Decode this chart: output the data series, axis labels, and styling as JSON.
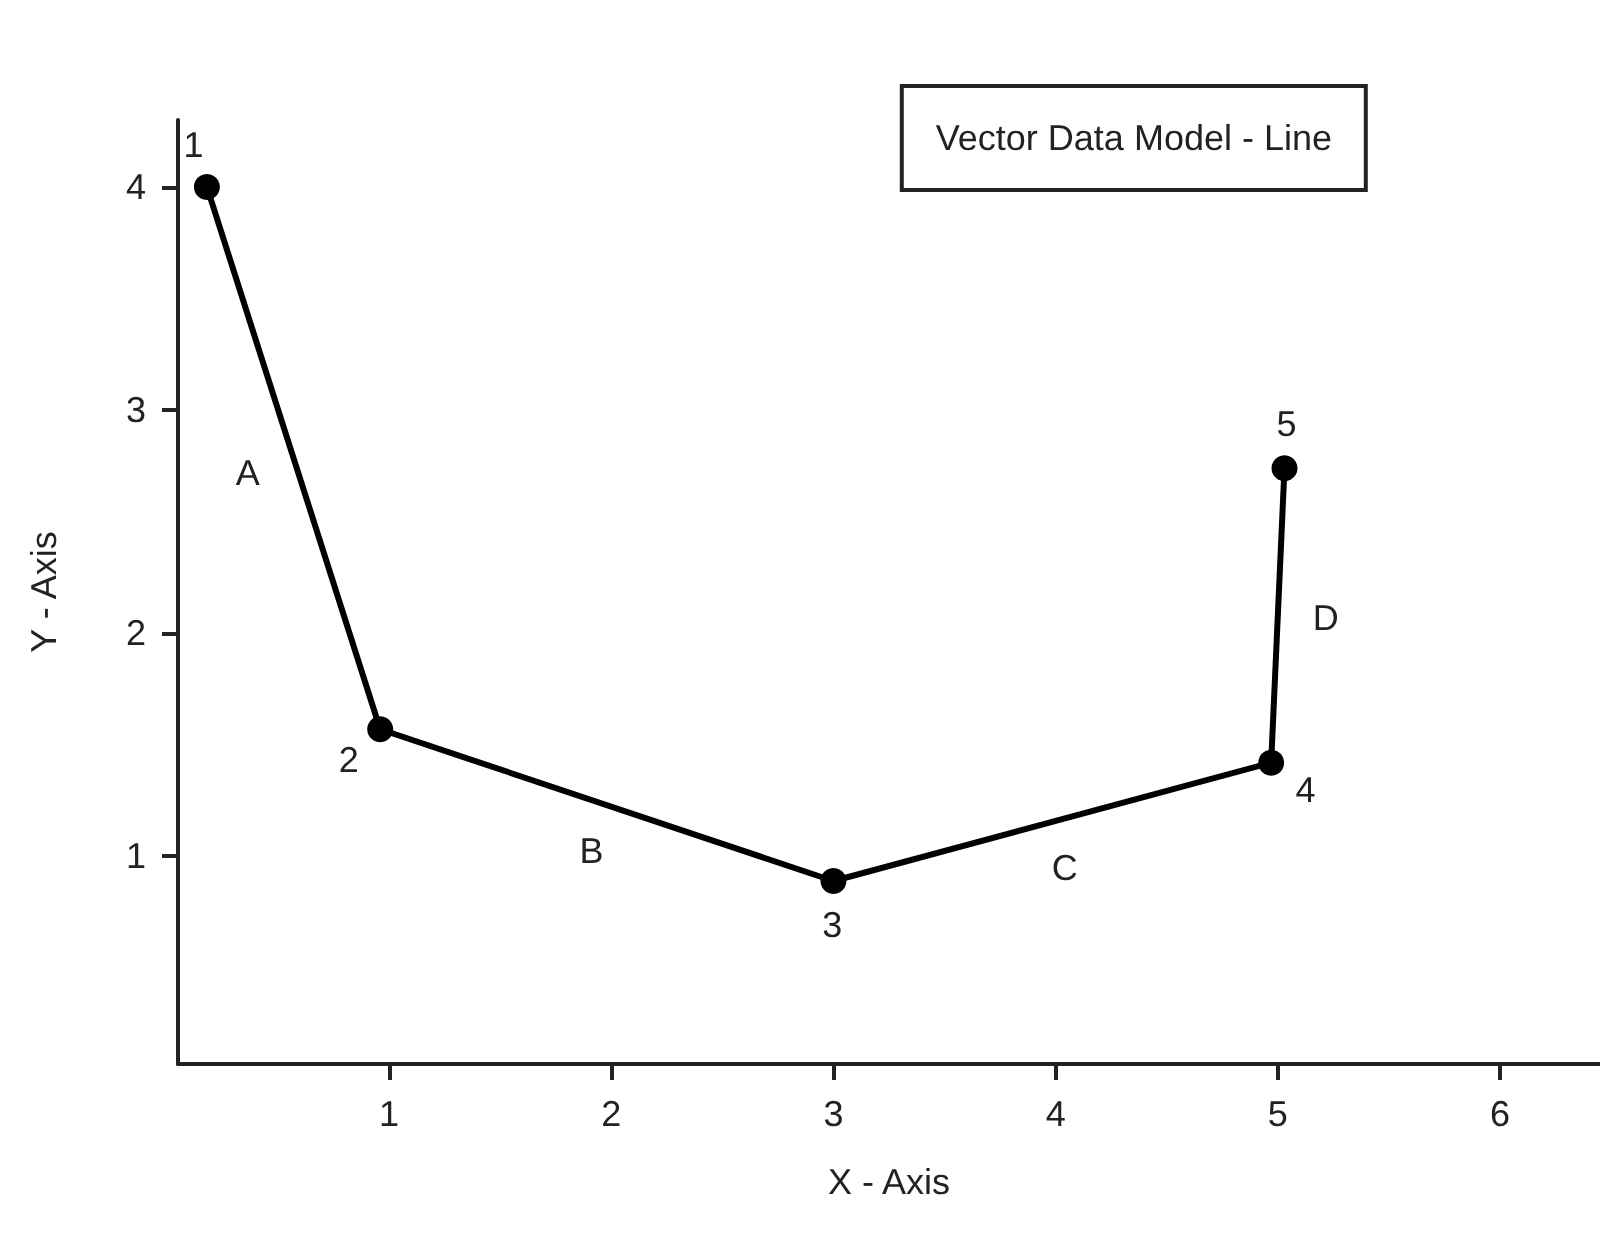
{
  "chart_data": {
    "type": "line",
    "title": "Vector Data Model - Line",
    "xlabel": "X - Axis",
    "ylabel": "Y - Axis",
    "x": [
      0.18,
      0.96,
      3.0,
      4.97,
      5.03
    ],
    "series": [
      {
        "color": "#000000",
        "values": [
          4.0,
          1.57,
          0.89,
          1.42,
          2.74
        ]
      }
    ],
    "xlim": [
      0.05,
      6.45
    ],
    "xticks": [
      1,
      2,
      3,
      4,
      5,
      6
    ],
    "ylim": [
      0.07,
      4.3
    ],
    "yticks": [
      1,
      2,
      3,
      4
    ],
    "grid": false,
    "marker": "circle",
    "line_style": "solid",
    "annotations": [
      {
        "text": "1",
        "x": 0.18,
        "y": 4.0
      },
      {
        "text": "2",
        "x": 0.96,
        "y": 1.57
      },
      {
        "text": "3",
        "x": 3.0,
        "y": 0.89
      },
      {
        "text": "4",
        "x": 4.97,
        "y": 1.42
      },
      {
        "text": "5",
        "x": 5.03,
        "y": 2.74
      },
      "A",
      "B",
      "C",
      "D"
    ]
  }
}
